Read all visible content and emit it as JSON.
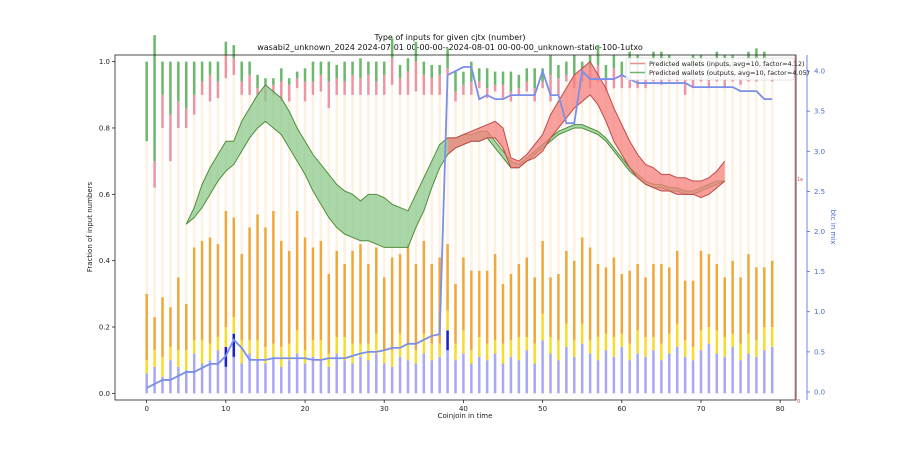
{
  "chart_data": {
    "type": "bar",
    "title": "Type of inputs for given cjtx (number)",
    "subtitle": "wasabi2_unknown_2024 2024-07-01 00-00-00--2024-08-01 00-00-00_unknown-static-100-1utxo",
    "xlabel": "Coinjoin in time",
    "ylabel": "Fraction of input numbers",
    "y2label": "btc in mix",
    "xlim": [
      -4,
      82
    ],
    "ylim": [
      -0.02,
      1.02
    ],
    "y2lim": [
      -0.1,
      4.2
    ],
    "x_ticks": [
      "0",
      "10",
      "20",
      "30",
      "40",
      "50",
      "60",
      "70",
      "80"
    ],
    "y_ticks": [
      "0.0",
      "0.2",
      "0.4",
      "0.6",
      "0.8",
      "1.0"
    ],
    "y2_ticks": [
      "0.0",
      "0.5",
      "1.0",
      "1.5",
      "2.0",
      "2.5",
      "3.0",
      "3.5",
      "4.0"
    ],
    "y3_marker": "1e",
    "y3_marker_bottom": "0",
    "grid": false,
    "legend_position": "top-right",
    "legend": [
      {
        "label": "Predicted wallets (inputs, avg=10, factor=4.12)",
        "color": "#e8908e"
      },
      {
        "label": "Predicted wallets (outputs, avg=10, factor=4.05)",
        "color": "#6ab56a"
      }
    ],
    "colors": {
      "blue_light": "#a8a8f4",
      "blue_dark": "#1a22c8",
      "yellow": "#f7dc2e",
      "orange": "#f0a83a",
      "cream": "#fdf1e0",
      "pink": "#ec96a2",
      "green": "#6cb86c",
      "btc_line": "#7b8fe8",
      "fill_red": "#f4807c",
      "fill_green": "#8cc98c"
    },
    "x": [
      0,
      1,
      2,
      3,
      4,
      5,
      6,
      7,
      8,
      9,
      10,
      11,
      12,
      13,
      14,
      15,
      16,
      17,
      18,
      19,
      20,
      21,
      22,
      23,
      24,
      25,
      26,
      27,
      28,
      29,
      30,
      31,
      32,
      33,
      34,
      35,
      36,
      37,
      38,
      39,
      40,
      41,
      42,
      43,
      44,
      45,
      46,
      47,
      48,
      49,
      50,
      51,
      52,
      53,
      54,
      55,
      56,
      57,
      58,
      59,
      60,
      61,
      62,
      63,
      64,
      65,
      66,
      67,
      68,
      69,
      70,
      71,
      72,
      73,
      74,
      75,
      76,
      77,
      78,
      79
    ],
    "series": [
      {
        "key": "blue_light",
        "values": [
          0.06,
          0.08,
          0.05,
          0.1,
          0.08,
          0.07,
          0.12,
          0.09,
          0.1,
          0.13,
          0.08,
          0.11,
          0.09,
          0.12,
          0.1,
          0.09,
          0.11,
          0.08,
          0.1,
          0.12,
          0.09,
          0.11,
          0.1,
          0.08,
          0.12,
          0.1,
          0.09,
          0.11,
          0.1,
          0.12,
          0.09,
          0.08,
          0.11,
          0.1,
          0.09,
          0.12,
          0.1,
          0.11,
          0.13,
          0.1,
          0.12,
          0.09,
          0.11,
          0.1,
          0.12,
          0.09,
          0.11,
          0.1,
          0.13,
          0.09,
          0.16,
          0.12,
          0.1,
          0.14,
          0.11,
          0.15,
          0.12,
          0.1,
          0.13,
          0.11,
          0.14,
          0.1,
          0.12,
          0.11,
          0.13,
          0.1,
          0.12,
          0.14,
          0.11,
          0.1,
          0.13,
          0.15,
          0.12,
          0.11,
          0.14,
          0.1,
          0.12,
          0.11,
          0.13,
          0.14
        ]
      },
      {
        "key": "blue_dark",
        "values": [
          0,
          0,
          0,
          0,
          0,
          0,
          0,
          0,
          0,
          0,
          0.06,
          0.07,
          0,
          0,
          0,
          0,
          0,
          0,
          0,
          0,
          0,
          0,
          0,
          0,
          0,
          0,
          0,
          0,
          0,
          0,
          0,
          0,
          0,
          0,
          0,
          0,
          0,
          0,
          0.06,
          0,
          0,
          0,
          0,
          0,
          0,
          0,
          0,
          0,
          0,
          0,
          0,
          0,
          0,
          0,
          0,
          0,
          0,
          0,
          0,
          0,
          0,
          0,
          0,
          0,
          0,
          0,
          0,
          0,
          0,
          0,
          0,
          0,
          0,
          0,
          0,
          0,
          0,
          0,
          0,
          0
        ]
      },
      {
        "key": "yellow",
        "values": [
          0.04,
          0.05,
          0.06,
          0.04,
          0.05,
          0.06,
          0.04,
          0.07,
          0.05,
          0.04,
          0.06,
          0.05,
          0.07,
          0.04,
          0.06,
          0.05,
          0.04,
          0.06,
          0.05,
          0.07,
          0.04,
          0.05,
          0.06,
          0.04,
          0.05,
          0.07,
          0.06,
          0.04,
          0.05,
          0.06,
          0.04,
          0.05,
          0.07,
          0.05,
          0.04,
          0.06,
          0.05,
          0.04,
          0.06,
          0.05,
          0.07,
          0.04,
          0.06,
          0.05,
          0.04,
          0.06,
          0.05,
          0.07,
          0.04,
          0.06,
          0.08,
          0.05,
          0.06,
          0.07,
          0.05,
          0.06,
          0.04,
          0.07,
          0.05,
          0.06,
          0.04,
          0.05,
          0.07,
          0.06,
          0.04,
          0.05,
          0.06,
          0.07,
          0.05,
          0.04,
          0.06,
          0.05,
          0.07,
          0.06,
          0.04,
          0.05,
          0.06,
          0.05,
          0.07,
          0.06
        ]
      },
      {
        "key": "orange",
        "values": [
          0.2,
          0.1,
          0.18,
          0.12,
          0.22,
          0.14,
          0.28,
          0.3,
          0.32,
          0.28,
          0.35,
          0.3,
          0.26,
          0.34,
          0.38,
          0.36,
          0.4,
          0.32,
          0.28,
          0.36,
          0.34,
          0.28,
          0.3,
          0.24,
          0.26,
          0.22,
          0.28,
          0.3,
          0.24,
          0.26,
          0.22,
          0.28,
          0.24,
          0.3,
          0.26,
          0.28,
          0.24,
          0.26,
          0.2,
          0.18,
          0.22,
          0.24,
          0.2,
          0.22,
          0.26,
          0.18,
          0.2,
          0.22,
          0.24,
          0.2,
          0.22,
          0.18,
          0.2,
          0.22,
          0.24,
          0.26,
          0.28,
          0.22,
          0.2,
          0.24,
          0.18,
          0.22,
          0.2,
          0.18,
          0.22,
          0.24,
          0.2,
          0.22,
          0.18,
          0.2,
          0.24,
          0.22,
          0.2,
          0.18,
          0.22,
          0.2,
          0.24,
          0.22,
          0.18,
          0.2
        ]
      },
      {
        "key": "cream",
        "values": [
          0.46,
          0.39,
          0.51,
          0.44,
          0.45,
          0.53,
          0.4,
          0.44,
          0.41,
          0.44,
          0.4,
          0.43,
          0.48,
          0.4,
          0.36,
          0.38,
          0.35,
          0.42,
          0.45,
          0.37,
          0.41,
          0.46,
          0.45,
          0.5,
          0.47,
          0.51,
          0.47,
          0.45,
          0.51,
          0.46,
          0.55,
          0.52,
          0.48,
          0.45,
          0.52,
          0.44,
          0.51,
          0.49,
          0.51,
          0.55,
          0.49,
          0.53,
          0.55,
          0.52,
          0.49,
          0.56,
          0.52,
          0.51,
          0.5,
          0.53,
          0.46,
          0.53,
          0.54,
          0.51,
          0.52,
          0.47,
          0.48,
          0.55,
          0.53,
          0.51,
          0.56,
          0.55,
          0.53,
          0.57,
          0.55,
          0.54,
          0.56,
          0.51,
          0.56,
          0.58,
          0.51,
          0.5,
          0.55,
          0.57,
          0.54,
          0.58,
          0.52,
          0.56,
          0.57,
          0.54
        ]
      },
      {
        "key": "pink",
        "values": [
          0.0,
          0.08,
          0.1,
          0.14,
          0.08,
          0.06,
          0.06,
          0.04,
          0.08,
          0.05,
          0.07,
          0.05,
          0.04,
          0.06,
          0.02,
          0.05,
          0.03,
          0.06,
          0.05,
          0.03,
          0.06,
          0.04,
          0.05,
          0.08,
          0.05,
          0.04,
          0.06,
          0.05,
          0.06,
          0.04,
          0.06,
          0.08,
          0.05,
          0.07,
          0.09,
          0.06,
          0.05,
          0.06,
          0.02,
          0.03,
          0.03,
          0.04,
          0.02,
          0.03,
          0.02,
          0.04,
          0.03,
          0.02,
          0.03,
          0.04,
          0.02,
          0.08,
          0.05,
          0.02,
          0.04,
          0.02,
          0.06,
          0.05,
          0.04,
          0.06,
          0.04,
          0.05,
          0.06,
          0.04,
          0.05,
          0.06,
          0.04,
          0.03,
          0.05,
          0.06,
          0.04,
          0.03,
          0.05,
          0.06,
          0.04,
          0.03,
          0.05,
          0.06,
          0.04,
          0.03
        ]
      },
      {
        "key": "green",
        "values": [
          0.24,
          0.38,
          0.1,
          0.16,
          0.12,
          0.14,
          0.1,
          0.06,
          0.04,
          0.06,
          0.04,
          0.04,
          0.06,
          0.04,
          0.04,
          0.02,
          0.02,
          0.04,
          0.02,
          0.02,
          0.04,
          0.06,
          0.04,
          0.06,
          0.04,
          0.06,
          0.04,
          0.06,
          0.04,
          0.06,
          0.04,
          0.06,
          0.04,
          0.04,
          0.06,
          0.04,
          0.04,
          0.03,
          0.06,
          0.06,
          0.04,
          0.06,
          0.04,
          0.06,
          0.04,
          0.04,
          0.06,
          0.04,
          0.04,
          0.06,
          0.04,
          0.06,
          0.04,
          0.04,
          0.06,
          0.04,
          0.04,
          0.06,
          0.04,
          0.04,
          0.04,
          0.06,
          0.04,
          0.04,
          0.04,
          0.04,
          0.04,
          0.04,
          0.04,
          0.04,
          0.04,
          0.04,
          0.04,
          0.04,
          0.04,
          0.04,
          0.04,
          0.04,
          0.04,
          0.04
        ]
      }
    ],
    "btc_in_mix": [
      0.05,
      0.1,
      0.15,
      0.15,
      0.2,
      0.25,
      0.25,
      0.3,
      0.35,
      0.35,
      0.45,
      0.65,
      0.55,
      0.4,
      0.4,
      0.4,
      0.42,
      0.42,
      0.42,
      0.42,
      0.42,
      0.4,
      0.4,
      0.42,
      0.42,
      0.42,
      0.45,
      0.48,
      0.5,
      0.5,
      0.52,
      0.55,
      0.55,
      0.6,
      0.6,
      0.65,
      0.7,
      0.72,
      3.95,
      4.0,
      4.05,
      4.05,
      3.65,
      3.7,
      3.65,
      3.65,
      3.7,
      3.7,
      3.7,
      3.7,
      4.0,
      3.7,
      3.7,
      3.35,
      3.35,
      4.0,
      3.9,
      3.9,
      3.9,
      3.9,
      3.95,
      3.9,
      3.85,
      3.85,
      3.85,
      3.85,
      3.85,
      3.85,
      3.85,
      3.8,
      3.8,
      3.8,
      3.8,
      3.8,
      3.8,
      3.75,
      3.75,
      3.75,
      3.65,
      3.65
    ],
    "band_outputs": {
      "x": [
        5,
        6,
        7,
        8,
        9,
        10,
        11,
        12,
        13,
        14,
        15,
        16,
        17,
        18,
        19,
        20,
        21,
        22,
        23,
        24,
        25,
        26,
        27,
        28,
        29,
        30,
        31,
        32,
        33,
        34,
        35,
        36,
        37,
        38,
        39,
        40,
        41,
        42,
        43,
        44,
        45,
        46,
        47,
        48,
        49,
        50,
        51,
        52,
        53,
        54,
        55,
        56,
        57,
        58,
        59,
        60,
        61,
        62,
        63,
        64,
        65,
        66,
        67,
        68,
        69,
        70,
        71,
        72,
        73
      ],
      "upper": [
        0.51,
        0.56,
        0.63,
        0.68,
        0.72,
        0.76,
        0.76,
        0.82,
        0.86,
        0.9,
        0.93,
        0.91,
        0.89,
        0.85,
        0.8,
        0.76,
        0.72,
        0.69,
        0.66,
        0.63,
        0.61,
        0.6,
        0.58,
        0.6,
        0.6,
        0.59,
        0.57,
        0.56,
        0.55,
        0.6,
        0.65,
        0.7,
        0.75,
        0.77,
        0.77,
        0.78,
        0.78,
        0.79,
        0.79,
        0.76,
        0.73,
        0.7,
        0.69,
        0.71,
        0.73,
        0.75,
        0.77,
        0.79,
        0.8,
        0.81,
        0.81,
        0.8,
        0.79,
        0.77,
        0.74,
        0.71,
        0.68,
        0.66,
        0.64,
        0.63,
        0.63,
        0.62,
        0.62,
        0.61,
        0.61,
        0.62,
        0.63,
        0.64,
        0.64
      ],
      "lower": [
        0.51,
        0.53,
        0.56,
        0.6,
        0.64,
        0.67,
        0.69,
        0.73,
        0.77,
        0.8,
        0.82,
        0.8,
        0.78,
        0.74,
        0.7,
        0.66,
        0.61,
        0.57,
        0.53,
        0.5,
        0.48,
        0.47,
        0.46,
        0.46,
        0.45,
        0.44,
        0.44,
        0.44,
        0.44,
        0.5,
        0.55,
        0.62,
        0.68,
        0.72,
        0.74,
        0.75,
        0.76,
        0.76,
        0.77,
        0.74,
        0.71,
        0.68,
        0.68,
        0.7,
        0.72,
        0.74,
        0.76,
        0.78,
        0.79,
        0.8,
        0.8,
        0.79,
        0.78,
        0.76,
        0.73,
        0.7,
        0.67,
        0.65,
        0.63,
        0.62,
        0.62,
        0.61,
        0.61,
        0.6,
        0.6,
        0.61,
        0.62,
        0.63,
        0.64
      ]
    },
    "band_inputs": {
      "x": [
        38,
        39,
        40,
        41,
        42,
        43,
        44,
        45,
        46,
        47,
        48,
        49,
        50,
        51,
        52,
        53,
        54,
        55,
        56,
        57,
        58,
        59,
        60,
        61,
        62,
        63,
        64,
        65,
        66,
        67,
        68,
        69,
        70,
        71,
        72,
        73
      ],
      "upper": [
        0.77,
        0.77,
        0.78,
        0.79,
        0.8,
        0.81,
        0.82,
        0.8,
        0.71,
        0.7,
        0.72,
        0.75,
        0.78,
        0.84,
        0.88,
        0.92,
        0.96,
        0.98,
        1.0,
        0.96,
        0.92,
        0.86,
        0.81,
        0.76,
        0.72,
        0.69,
        0.68,
        0.66,
        0.66,
        0.65,
        0.65,
        0.64,
        0.64,
        0.65,
        0.67,
        0.7
      ],
      "lower": [
        0.72,
        0.74,
        0.75,
        0.76,
        0.76,
        0.77,
        0.77,
        0.74,
        0.68,
        0.68,
        0.7,
        0.71,
        0.73,
        0.77,
        0.8,
        0.83,
        0.86,
        0.88,
        0.9,
        0.87,
        0.82,
        0.76,
        0.72,
        0.68,
        0.65,
        0.63,
        0.62,
        0.61,
        0.61,
        0.6,
        0.6,
        0.6,
        0.59,
        0.6,
        0.62,
        0.64
      ]
    }
  }
}
